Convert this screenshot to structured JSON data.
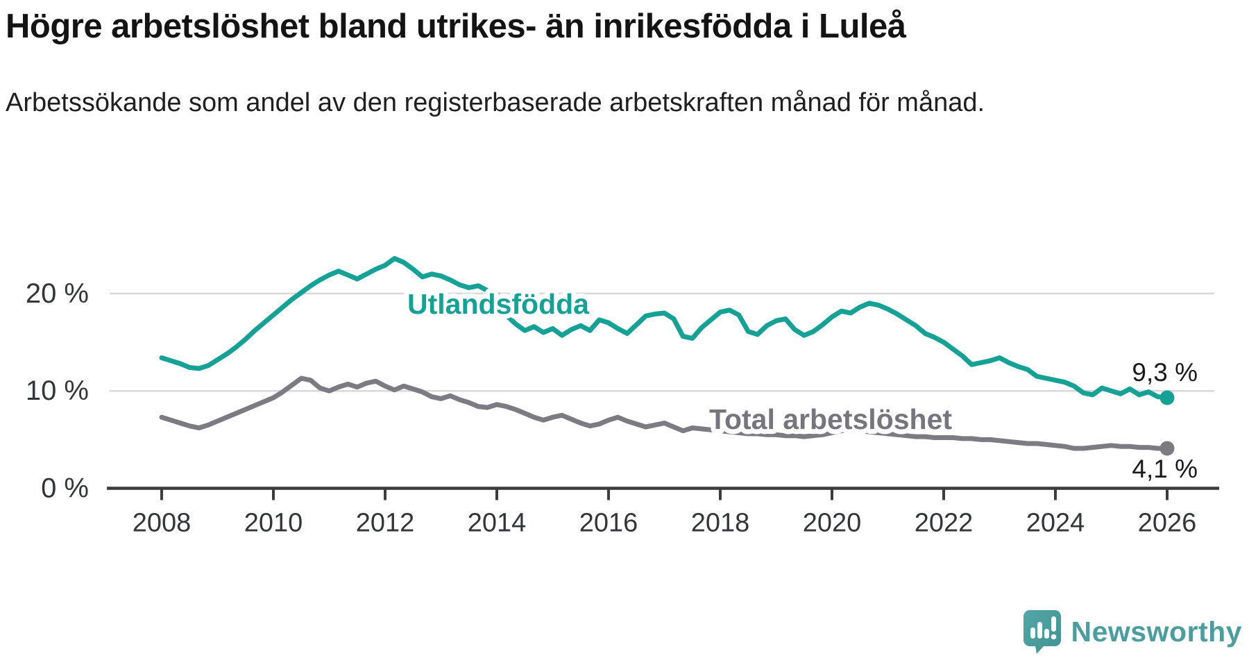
{
  "header": {
    "title": "Högre arbetslöshet bland utrikes- än inrikesfödda i Luleå",
    "subtitle": "Arbetssökande som andel av den registerbaserade arbetskraften månad för månad."
  },
  "chart_data": {
    "type": "line",
    "title": "Högre arbetslöshet bland utrikes- än inrikesfödda i Luleå",
    "x_start_year": 2008.0,
    "x_end_year": 2026.0,
    "points_per_year": 6,
    "x_tick_labels": [
      "2008",
      "2010",
      "2012",
      "2014",
      "2016",
      "2018",
      "2020",
      "2022",
      "2024",
      "2026"
    ],
    "x_tick_years": [
      2008,
      2010,
      2012,
      2014,
      2016,
      2018,
      2020,
      2022,
      2024,
      2026
    ],
    "y_ticks": [
      {
        "value": 0,
        "label": "0 %"
      },
      {
        "value": 10,
        "label": "10 %"
      },
      {
        "value": 20,
        "label": "20 %"
      }
    ],
    "ylim": [
      0,
      25
    ],
    "grid": "horizontal-only",
    "legend_position": "inline-labels",
    "series": [
      {
        "name": "Utlandsfödda",
        "color": "#15a195",
        "end_label": "9,3 %",
        "end_value": 9.3,
        "values": [
          13.4,
          13.1,
          12.8,
          12.4,
          12.3,
          12.6,
          13.2,
          13.8,
          14.5,
          15.3,
          16.2,
          17.0,
          17.8,
          18.6,
          19.4,
          20.1,
          20.8,
          21.4,
          21.9,
          22.3,
          21.9,
          21.5,
          22.0,
          22.5,
          22.9,
          23.6,
          23.2,
          22.5,
          21.7,
          22.0,
          21.8,
          21.4,
          20.9,
          20.6,
          20.8,
          20.3,
          20.0,
          17.8,
          16.9,
          16.2,
          16.6,
          16.0,
          16.4,
          15.7,
          16.3,
          16.7,
          16.2,
          17.3,
          17.0,
          16.4,
          15.9,
          16.8,
          17.7,
          17.9,
          18.0,
          17.4,
          15.6,
          15.4,
          16.5,
          17.3,
          18.1,
          18.3,
          17.8,
          16.1,
          15.8,
          16.7,
          17.2,
          17.4,
          16.3,
          15.7,
          16.1,
          16.8,
          17.6,
          18.2,
          18.0,
          18.6,
          19.0,
          18.8,
          18.4,
          17.9,
          17.3,
          16.7,
          15.9,
          15.5,
          15.0,
          14.3,
          13.6,
          12.7,
          12.9,
          13.1,
          13.4,
          12.9,
          12.5,
          12.2,
          11.5,
          11.3,
          11.1,
          10.9,
          10.5,
          9.8,
          9.6,
          10.3,
          10.0,
          9.7,
          10.2,
          9.6,
          9.9,
          9.4,
          9.3
        ]
      },
      {
        "name": "Total arbetslöshet",
        "color": "#7c7b83",
        "label_color": "#76757d",
        "end_label": "4,1 %",
        "end_value": 4.1,
        "values": [
          7.3,
          7.0,
          6.7,
          6.4,
          6.2,
          6.5,
          6.9,
          7.3,
          7.7,
          8.1,
          8.5,
          8.9,
          9.3,
          9.9,
          10.6,
          11.3,
          11.1,
          10.3,
          10.0,
          10.4,
          10.7,
          10.4,
          10.8,
          11.0,
          10.5,
          10.1,
          10.5,
          10.2,
          9.9,
          9.4,
          9.2,
          9.5,
          9.1,
          8.8,
          8.4,
          8.3,
          8.6,
          8.4,
          8.1,
          7.7,
          7.3,
          7.0,
          7.3,
          7.5,
          7.1,
          6.7,
          6.4,
          6.6,
          7.0,
          7.3,
          6.9,
          6.6,
          6.3,
          6.5,
          6.7,
          6.3,
          5.9,
          6.2,
          6.1,
          6.0,
          5.9,
          5.8,
          5.7,
          5.6,
          5.6,
          5.5,
          5.5,
          5.4,
          5.4,
          5.3,
          5.4,
          5.5,
          5.7,
          5.9,
          6.0,
          5.9,
          5.8,
          5.7,
          5.6,
          5.5,
          5.4,
          5.3,
          5.3,
          5.2,
          5.2,
          5.2,
          5.1,
          5.1,
          5.0,
          5.0,
          4.9,
          4.8,
          4.7,
          4.6,
          4.6,
          4.5,
          4.4,
          4.3,
          4.1,
          4.1,
          4.2,
          4.3,
          4.4,
          4.3,
          4.3,
          4.2,
          4.2,
          4.1,
          4.1
        ]
      }
    ]
  },
  "colors": {
    "axis_line": "#3d3d40",
    "tick_label": "#333538",
    "gridline": "#d8d8d8",
    "end_label": "#1a1a1a",
    "background": "#ffffff",
    "brand": "#4b9d9e"
  },
  "footer": {
    "brand": "Newsworthy"
  }
}
